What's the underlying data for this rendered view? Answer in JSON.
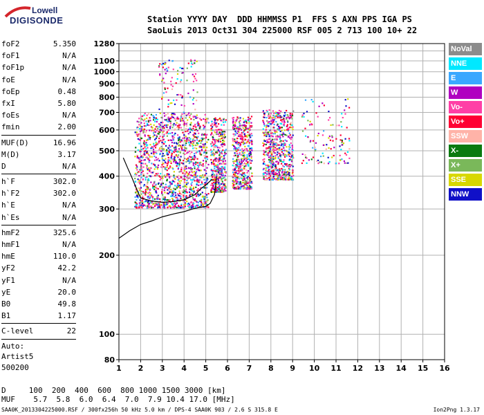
{
  "logo": {
    "line1": "Lowell",
    "line2": "DIGISONDE"
  },
  "header": {
    "line1": "Station YYYY DAY  DDD HHMMSS P1  FFS S AXN PPS IGA PS",
    "line2": "SaoLuis 2013 Oct31 304 225000 RSF 005 2 713 100 10+ 22"
  },
  "params": [
    {
      "label": "foF2",
      "value": "5.350"
    },
    {
      "label": "foF1",
      "value": "N/A"
    },
    {
      "label": "foF1p",
      "value": "N/A"
    },
    {
      "label": "foE",
      "value": "N/A"
    },
    {
      "label": "foEp",
      "value": "0.48"
    },
    {
      "label": "fxI",
      "value": "5.80"
    },
    {
      "label": "foEs",
      "value": "N/A"
    },
    {
      "label": "fmin",
      "value": "2.00"
    },
    {
      "sep": true
    },
    {
      "label": "MUF(D)",
      "value": "16.96"
    },
    {
      "label": "M(D)",
      "value": "3.17"
    },
    {
      "label": "D",
      "value": "N/A"
    },
    {
      "sep": true
    },
    {
      "label": "h`F",
      "value": "302.0"
    },
    {
      "label": "h`F2",
      "value": "302.0"
    },
    {
      "label": "h`E",
      "value": "N/A"
    },
    {
      "label": "h`Es",
      "value": "N/A"
    },
    {
      "sep": true
    },
    {
      "label": "hmF2",
      "value": "325.6"
    },
    {
      "label": "hmF1",
      "value": "N/A"
    },
    {
      "label": "hmE",
      "value": "110.0"
    },
    {
      "label": "yF2",
      "value": "42.2"
    },
    {
      "label": "yF1",
      "value": "N/A"
    },
    {
      "label": "yE",
      "value": "20.0"
    },
    {
      "label": "B0",
      "value": "49.8"
    },
    {
      "label": "B1",
      "value": "1.17"
    },
    {
      "sep": true
    },
    {
      "label": "C-level",
      "value": "22"
    },
    {
      "sep": true
    }
  ],
  "auto": [
    "Auto:",
    "Artist5",
    "500200"
  ],
  "muf_table": {
    "line1": "D     100  200  400  600  800 1000 1500 3000 [km]",
    "line2": "MUF    5.7  5.8  6.0  6.4  7.0  7.9 10.4 17.0 [MHz]"
  },
  "footer": "SAA0K_2013304225000.RSF / 300fx256h 50 kHz 5.0 km / DPS-4 SAA0K 903 / 2.6 S 315.8 E",
  "footer_right": "Ion2Png 1.3.17",
  "legend": [
    {
      "label": "NoVal",
      "color": "#8c8c8c"
    },
    {
      "label": "NNE",
      "color": "#00e8ff"
    },
    {
      "label": "E",
      "color": "#3aa8ff"
    },
    {
      "label": "W",
      "color": "#b000c0"
    },
    {
      "label": "Vo-",
      "color": "#ff3fa6"
    },
    {
      "label": "Vo+",
      "color": "#ff0033"
    },
    {
      "label": "SSW",
      "color": "#ffb3a8"
    },
    {
      "label": "X-",
      "color": "#0a7a10"
    },
    {
      "label": "X+",
      "color": "#7ab85a"
    },
    {
      "label": "SSE",
      "color": "#d8d800"
    },
    {
      "label": "NNW",
      "color": "#1010c8"
    }
  ],
  "chart_data": {
    "type": "scatter",
    "title": "",
    "xlabel": "",
    "ylabel": "",
    "xlim": [
      1,
      16
    ],
    "ylim": [
      80,
      1280
    ],
    "yscale": "log",
    "x_ticks": [
      1,
      2,
      3,
      4,
      5,
      6,
      7,
      8,
      9,
      10,
      11,
      12,
      13,
      14,
      15,
      16
    ],
    "y_ticks": [
      80,
      100,
      200,
      300,
      400,
      500,
      600,
      700,
      800,
      900,
      1000,
      1100,
      1280
    ],
    "grid": true,
    "legend_position": "right",
    "clusters": [
      {
        "x_range": [
          1.7,
          5.1
        ],
        "y_range": [
          305,
          700
        ],
        "count": 1400
      },
      {
        "x_range": [
          2.8,
          4.6
        ],
        "y_range": [
          450,
          1130
        ],
        "count": 220
      },
      {
        "x_range": [
          5.2,
          5.9
        ],
        "y_range": [
          350,
          670
        ],
        "count": 420
      },
      {
        "x_range": [
          6.2,
          7.1
        ],
        "y_range": [
          360,
          680
        ],
        "count": 500
      },
      {
        "x_range": [
          7.6,
          9.0
        ],
        "y_range": [
          390,
          720
        ],
        "count": 650
      },
      {
        "x_range": [
          9.4,
          11.6
        ],
        "y_range": [
          450,
          800
        ],
        "count": 120
      }
    ],
    "traces": [
      {
        "name": "",
        "x": [
          1.0,
          1.5,
          2.0,
          2.5,
          3.0,
          3.5,
          4.0,
          4.4,
          4.8,
          5.0,
          5.2,
          5.4,
          5.5
        ],
        "y": [
          232,
          248,
          262,
          270,
          280,
          287,
          293,
          300,
          305,
          307,
          315,
          340,
          400
        ]
      },
      {
        "name": "",
        "x": [
          1.2,
          1.4,
          1.6,
          1.8,
          2.0,
          2.5,
          3.0,
          3.5,
          4.0,
          4.5,
          4.8,
          5.0,
          5.3
        ],
        "y": [
          470,
          430,
          395,
          360,
          330,
          322,
          318,
          320,
          325,
          340,
          360,
          370,
          390
        ]
      }
    ]
  }
}
